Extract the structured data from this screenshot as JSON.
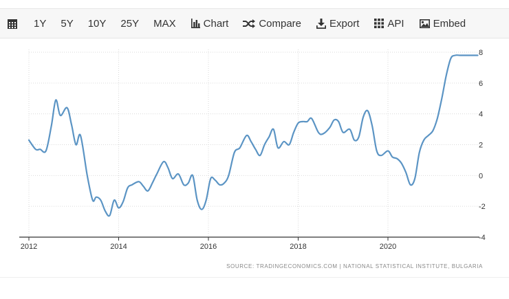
{
  "toolbar": {
    "ranges": [
      "1Y",
      "5Y",
      "10Y",
      "25Y",
      "MAX"
    ],
    "chart_label": "Chart",
    "compare_label": "Compare",
    "export_label": "Export",
    "api_label": "API",
    "embed_label": "Embed"
  },
  "source": "SOURCE: TRADINGECONOMICS.COM  |  NATIONAL STATISTICAL INSTITUTE, BULGARIA",
  "colors": {
    "line": "#5b94c4",
    "grid": "#d9d9d9",
    "axis": "#333333"
  },
  "chart_data": {
    "type": "line",
    "title": "",
    "xlabel": "",
    "ylabel": "",
    "xlim": [
      2012.0,
      2022.2
    ],
    "ylim": [
      -4,
      8
    ],
    "x_ticks": [
      2012,
      2014,
      2016,
      2018,
      2020
    ],
    "y_ticks": [
      -4,
      -2,
      0,
      2,
      4,
      6,
      8
    ],
    "grid": true,
    "series": [
      {
        "name": "",
        "x": [
          2012.0,
          2012.15,
          2012.25,
          2012.38,
          2012.5,
          2012.6,
          2012.7,
          2012.85,
          2012.95,
          2013.05,
          2013.15,
          2013.3,
          2013.42,
          2013.5,
          2013.6,
          2013.7,
          2013.8,
          2013.9,
          2014.0,
          2014.1,
          2014.2,
          2014.3,
          2014.45,
          2014.55,
          2014.65,
          2014.75,
          2014.85,
          2015.0,
          2015.1,
          2015.2,
          2015.33,
          2015.45,
          2015.55,
          2015.65,
          2015.75,
          2015.85,
          2015.95,
          2016.05,
          2016.15,
          2016.25,
          2016.35,
          2016.45,
          2016.58,
          2016.7,
          2016.85,
          2016.95,
          2017.05,
          2017.15,
          2017.25,
          2017.35,
          2017.45,
          2017.55,
          2017.68,
          2017.8,
          2017.9,
          2018.0,
          2018.1,
          2018.2,
          2018.3,
          2018.45,
          2018.55,
          2018.7,
          2018.8,
          2018.9,
          2019.0,
          2019.15,
          2019.25,
          2019.35,
          2019.45,
          2019.55,
          2019.65,
          2019.75,
          2019.85,
          2020.0,
          2020.1,
          2020.2,
          2020.3,
          2020.4,
          2020.5,
          2020.6,
          2020.7,
          2020.8,
          2020.9,
          2021.0,
          2021.1,
          2021.2,
          2021.3,
          2021.4,
          2021.5,
          2021.6,
          2021.7,
          2021.8,
          2021.92,
          2022.0
        ],
        "values": [
          2.3,
          1.7,
          1.7,
          1.6,
          3.2,
          4.9,
          3.9,
          4.4,
          3.3,
          2.0,
          2.6,
          0.0,
          -1.6,
          -1.4,
          -1.6,
          -2.3,
          -2.6,
          -1.6,
          -2.1,
          -1.7,
          -0.8,
          -0.6,
          -0.4,
          -0.7,
          -1.0,
          -0.5,
          0.1,
          0.9,
          0.5,
          -0.2,
          0.1,
          -0.6,
          -0.5,
          0.0,
          -1.6,
          -2.2,
          -1.6,
          -0.2,
          -0.3,
          -0.6,
          -0.5,
          0.0,
          1.5,
          1.8,
          2.6,
          2.2,
          1.7,
          1.3,
          2.0,
          2.5,
          3.0,
          1.8,
          2.2,
          2.0,
          2.8,
          3.4,
          3.5,
          3.5,
          3.7,
          2.8,
          2.7,
          3.1,
          3.6,
          3.5,
          2.8,
          3.0,
          2.3,
          2.5,
          3.8,
          4.2,
          3.2,
          1.6,
          1.3,
          1.6,
          1.2,
          1.1,
          0.8,
          0.2,
          -0.6,
          -0.2,
          1.5,
          2.3,
          2.6,
          2.9,
          3.7,
          5.0,
          6.5,
          7.6,
          7.8,
          7.8,
          7.8,
          7.8,
          7.8,
          7.8
        ]
      }
    ]
  }
}
